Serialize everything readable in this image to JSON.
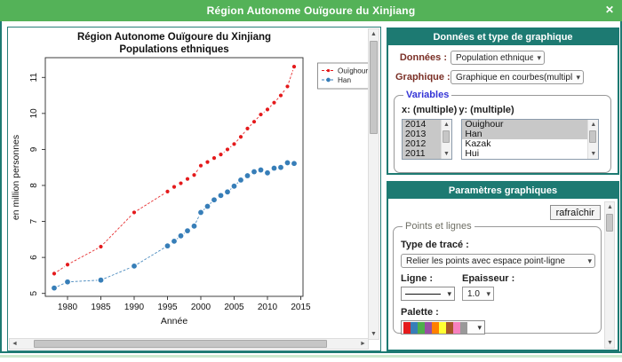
{
  "window": {
    "title": "Région Autonome Ouïgoure du Xinjiang"
  },
  "icons": {
    "close": "✕",
    "chevron_down": "▾",
    "arrow_up": "▲",
    "arrow_down": "▼",
    "arrow_left": "◄",
    "arrow_right": "►"
  },
  "chart_data": {
    "type": "line",
    "title": "Région Autonome Ouïgoure du Xinjiang",
    "subtitle": "Populations ethniques",
    "xlabel": "Année",
    "ylabel": "en million personnes",
    "x": [
      1978,
      1980,
      1985,
      1990,
      1995,
      1996,
      1997,
      1998,
      1999,
      2000,
      2001,
      2002,
      2003,
      2004,
      2005,
      2006,
      2007,
      2008,
      2009,
      2010,
      2011,
      2012,
      2013,
      2014
    ],
    "series": [
      {
        "name": "Ouïghour",
        "color": "#e41a1c",
        "values": [
          5.55,
          5.8,
          6.3,
          7.25,
          7.83,
          7.96,
          8.06,
          8.18,
          8.29,
          8.55,
          8.65,
          8.76,
          8.86,
          9.0,
          9.15,
          9.35,
          9.58,
          9.77,
          9.97,
          10.11,
          10.3,
          10.5,
          10.75,
          11.3
        ]
      },
      {
        "name": "Han",
        "color": "#377eb8",
        "values": [
          5.15,
          5.32,
          5.37,
          5.76,
          6.32,
          6.45,
          6.6,
          6.74,
          6.87,
          7.25,
          7.42,
          7.6,
          7.72,
          7.82,
          7.98,
          8.15,
          8.27,
          8.38,
          8.43,
          8.35,
          8.48,
          8.5,
          8.63,
          8.61
        ]
      }
    ],
    "xticks": [
      1980,
      1985,
      1990,
      1995,
      2000,
      2005,
      2010,
      2015
    ],
    "yticks": [
      5,
      6,
      7,
      8,
      9,
      10,
      11
    ],
    "xlim": [
      1977,
      2016
    ],
    "ylim": [
      4.85,
      11.55
    ],
    "grid": false,
    "legend_position": "top-right"
  },
  "data_panel": {
    "header": "Données et type de graphique",
    "donnees_label": "Données :",
    "donnees_value": "Population ethnique",
    "graphique_label": "Graphique :",
    "graphique_value": "Graphique en courbes(multiple)",
    "variables_legend": "Variables",
    "x_label": "x: (multiple)",
    "y_label": "y: (multiple)",
    "x_options": [
      {
        "label": "2014",
        "selected": true
      },
      {
        "label": "2013",
        "selected": true
      },
      {
        "label": "2012",
        "selected": true
      },
      {
        "label": "2011",
        "selected": true
      }
    ],
    "y_options": [
      {
        "label": "Ouighour",
        "selected": true
      },
      {
        "label": "Han",
        "selected": true
      },
      {
        "label": "Kazak",
        "selected": false
      },
      {
        "label": "Hui",
        "selected": false
      }
    ]
  },
  "params_panel": {
    "header": "Paramètres graphiques",
    "refresh_label": "rafraîchir",
    "fieldset_legend": "Points et lignes",
    "trace_label": "Type de tracé :",
    "trace_value": "Relier les points avec espace point-ligne",
    "ligne_label": "Ligne :",
    "ligne_value": "solid",
    "epaisseur_label": "Epaisseur :",
    "epaisseur_value": "1.0",
    "palette_label": "Palette :",
    "palette_colors": [
      "#e41a1c",
      "#377eb8",
      "#4daf4a",
      "#984ea3",
      "#ff7f00",
      "#ffff33",
      "#a65628",
      "#f781bf",
      "#999999"
    ]
  },
  "colors": {
    "titlebar_green": "#54b258",
    "panel_teal": "#1d7a72",
    "label_maroon": "#7a2f26",
    "variables_blue": "#3434d6",
    "selected_item_gray": "#c8c8c8",
    "footer_green": "#cde9ce"
  }
}
